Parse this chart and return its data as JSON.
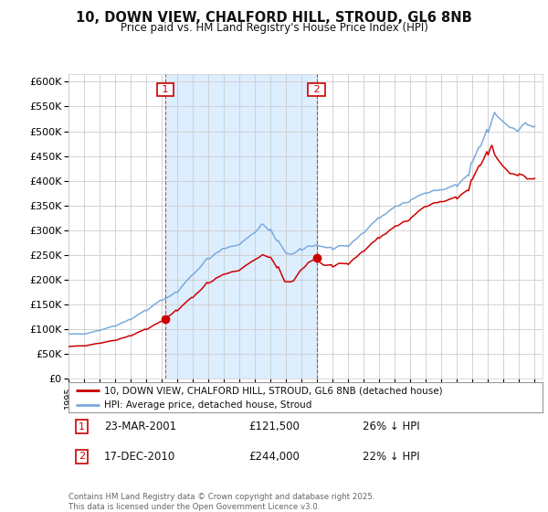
{
  "title": "10, DOWN VIEW, CHALFORD HILL, STROUD, GL6 8NB",
  "subtitle": "Price paid vs. HM Land Registry's House Price Index (HPI)",
  "ytick_values": [
    0,
    50000,
    100000,
    150000,
    200000,
    250000,
    300000,
    350000,
    400000,
    450000,
    500000,
    550000,
    600000
  ],
  "ylim": [
    0,
    615000
  ],
  "xlim_start": 1995.0,
  "xlim_end": 2025.5,
  "red_line_color": "#cc0000",
  "blue_line_color": "#7aaadd",
  "plot_bg_color": "#ffffff",
  "fig_bg_color": "#ffffff",
  "grid_color": "#cccccc",
  "shade_color": "#ddeeff",
  "marker1_x": 2001.22,
  "marker1_y": 121500,
  "marker2_x": 2010.96,
  "marker2_y": 244000,
  "marker1_date": "23-MAR-2001",
  "marker1_price": "£121,500",
  "marker1_hpi": "26% ↓ HPI",
  "marker2_date": "17-DEC-2010",
  "marker2_price": "£244,000",
  "marker2_hpi": "22% ↓ HPI",
  "legend_line1": "10, DOWN VIEW, CHALFORD HILL, STROUD, GL6 8NB (detached house)",
  "legend_line2": "HPI: Average price, detached house, Stroud",
  "footer": "Contains HM Land Registry data © Crown copyright and database right 2025.\nThis data is licensed under the Open Government Licence v3.0."
}
